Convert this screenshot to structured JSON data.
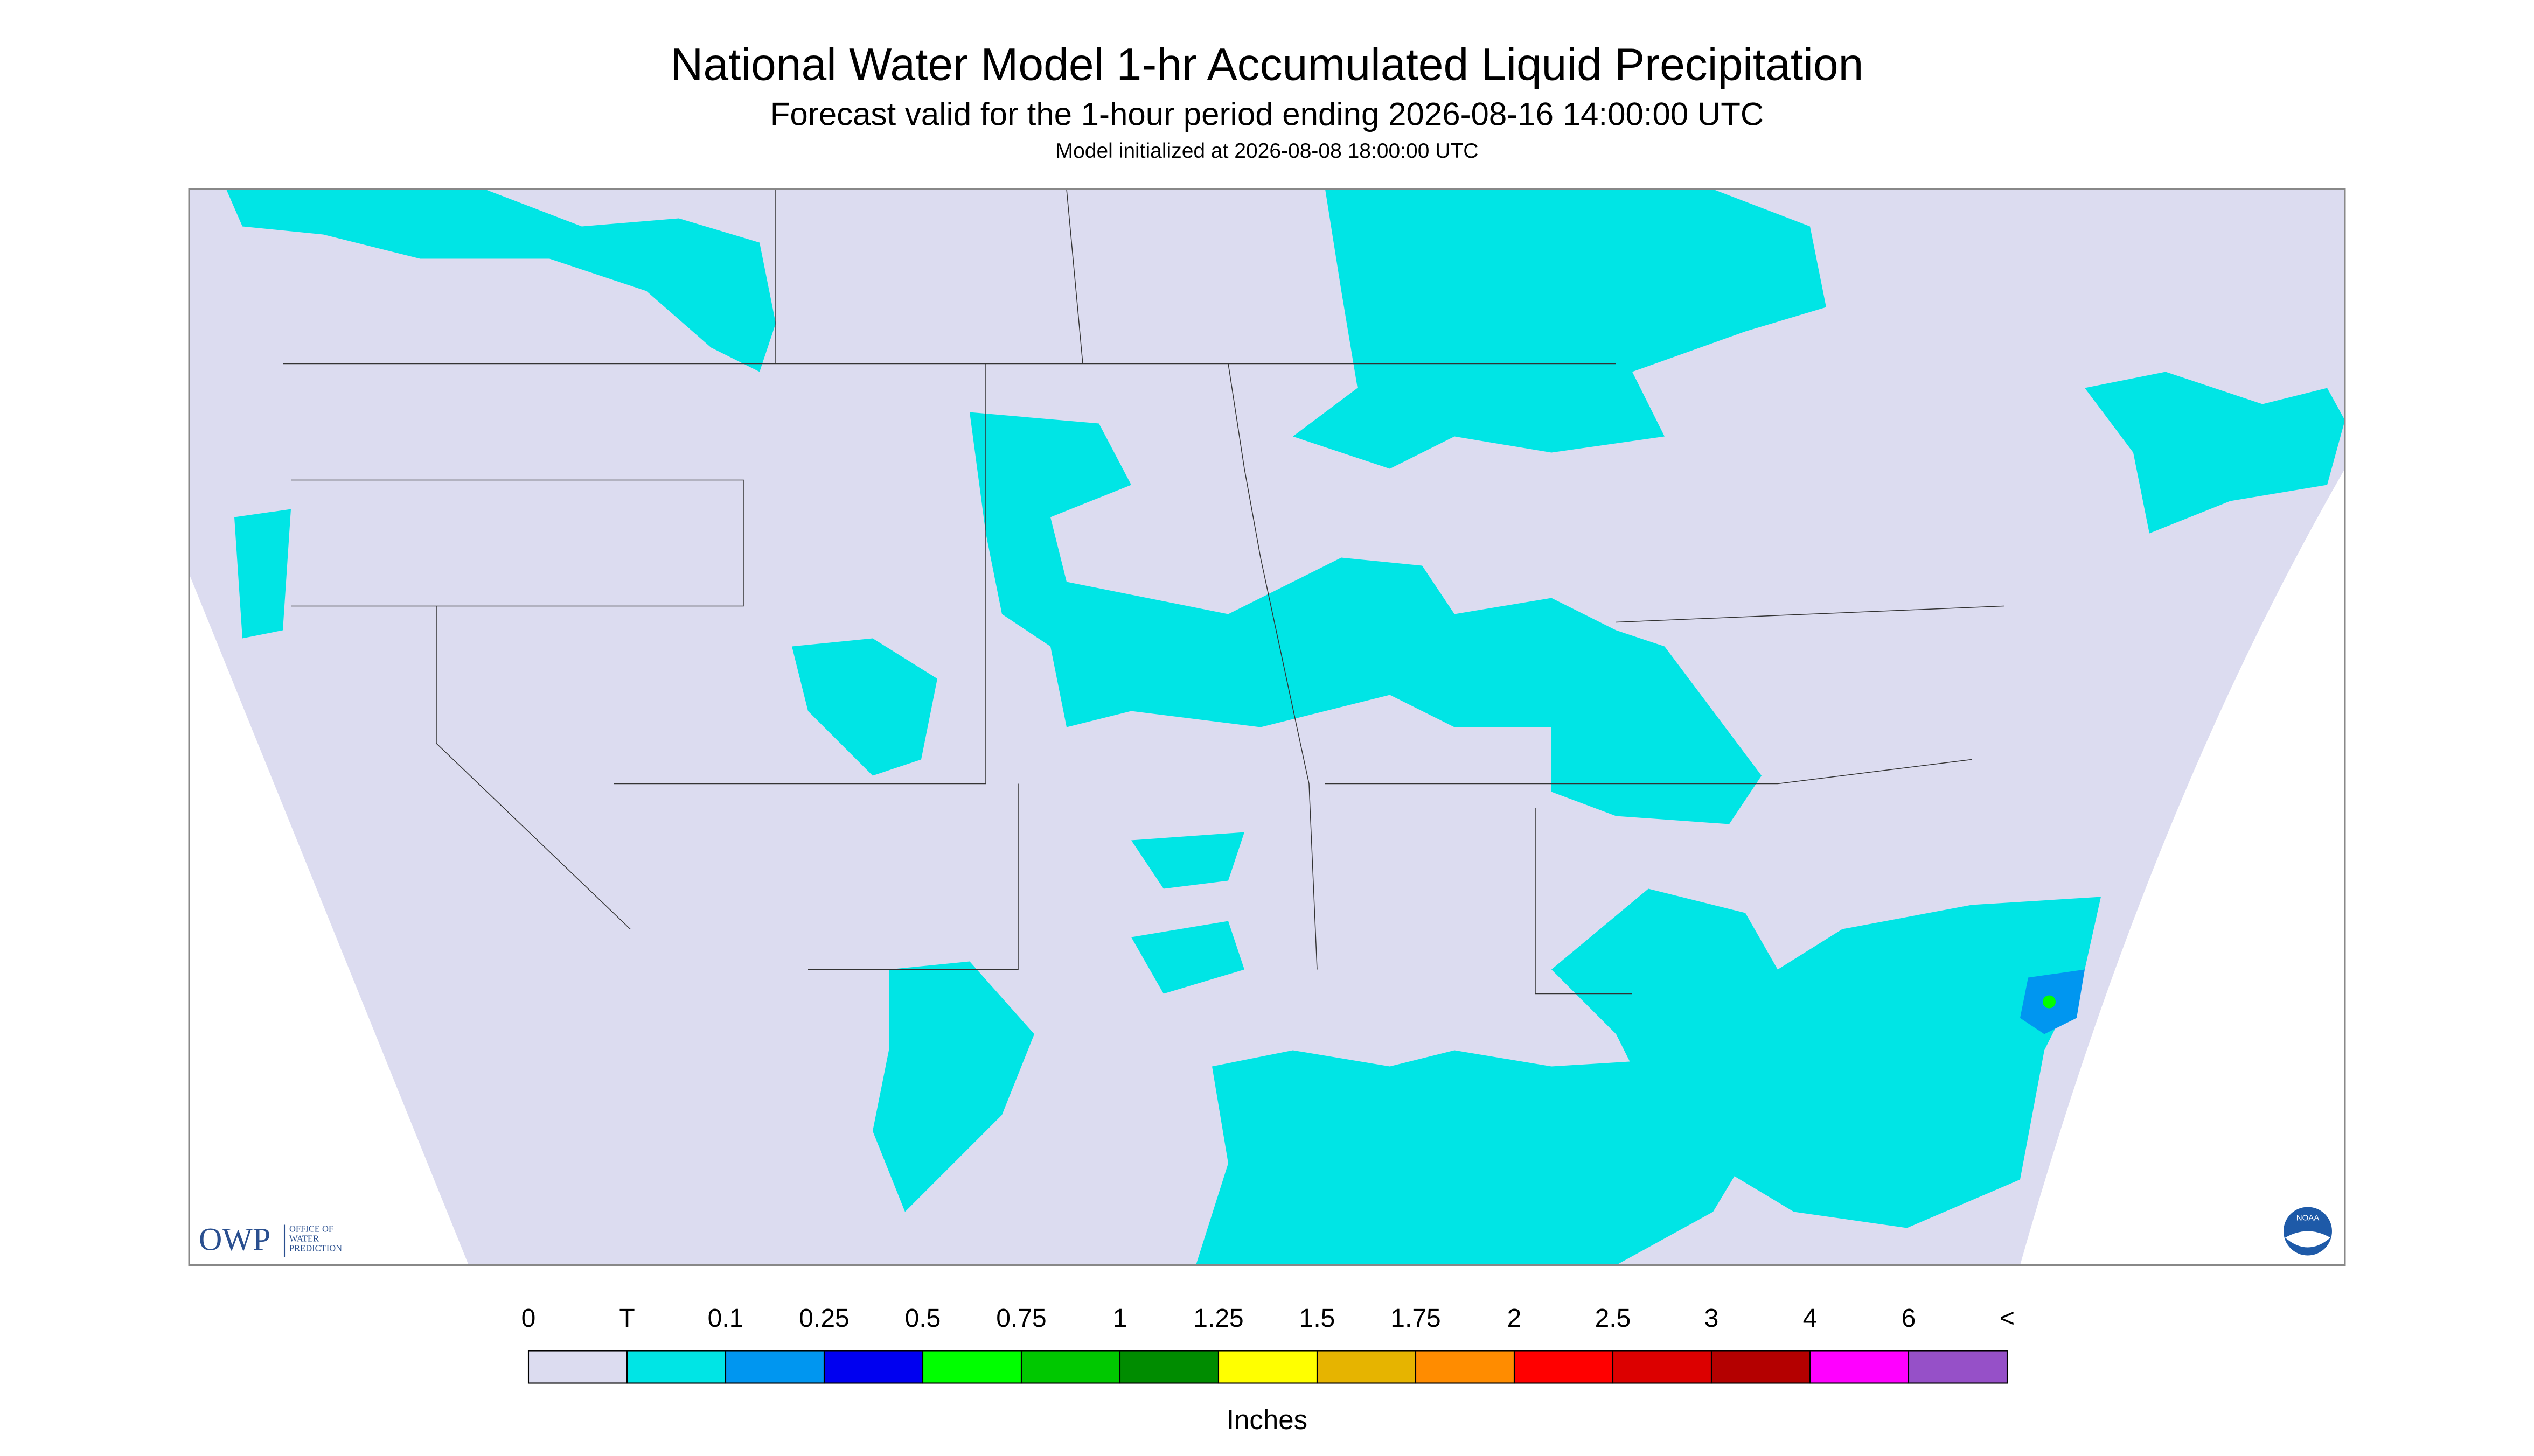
{
  "header": {
    "title": "National Water Model 1-hr Accumulated Liquid Precipitation",
    "subtitle": "Forecast valid for the 1-hour period ending 2026-08-16 14:00:00 UTC",
    "note": "Model initialized at 2026-08-08 18:00:00 UTC"
  },
  "logo": {
    "acronym": "OWP",
    "lines": [
      "OFFICE OF",
      "WATER",
      "PREDICTION"
    ],
    "agency": "NOAA"
  },
  "legend": {
    "labels": [
      "0",
      "T",
      "0.1",
      "0.25",
      "0.5",
      "0.75",
      "1",
      "1.25",
      "1.5",
      "1.75",
      "2",
      "2.5",
      "3",
      "4",
      "6",
      "<"
    ],
    "colors": [
      "#dcdcf0",
      "#00e5e5",
      "#0096f0",
      "#0000f0",
      "#00ff00",
      "#00c800",
      "#008c00",
      "#ffff00",
      "#e6b400",
      "#ff8c00",
      "#ff0000",
      "#dc0000",
      "#b40000",
      "#ff00ff",
      "#9650c8"
    ],
    "unit": "Inches"
  }
}
